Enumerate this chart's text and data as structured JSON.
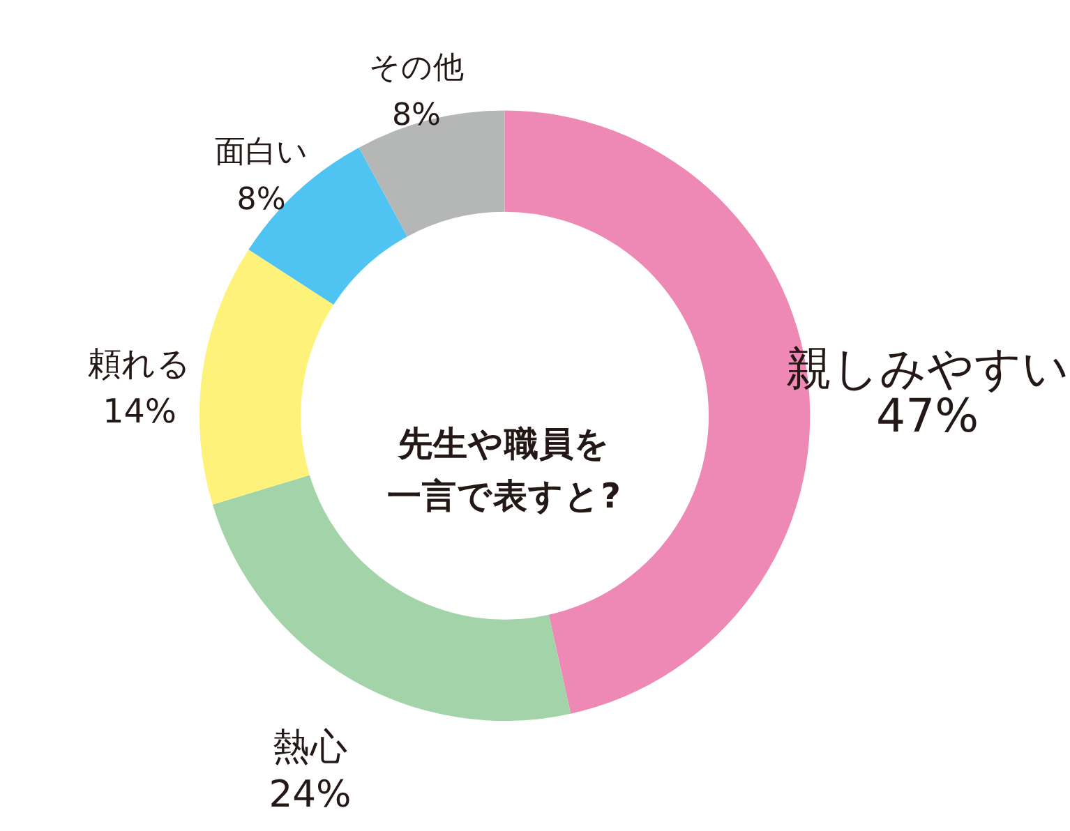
{
  "chart_data": {
    "type": "donut",
    "title": "先生や職員を一言で表すと?",
    "categories": [
      "親しみやすい",
      "熱心",
      "頼れる",
      "面白い",
      "その他"
    ],
    "values": [
      47,
      24,
      14,
      8,
      8
    ],
    "value_labels": [
      "47%",
      "24%",
      "14%",
      "8%",
      "8%"
    ],
    "colors": [
      "#ee88b4",
      "#a3d4a9",
      "#fff27a",
      "#4fc3f1",
      "#b5b6b6"
    ],
    "legend": false
  }
}
